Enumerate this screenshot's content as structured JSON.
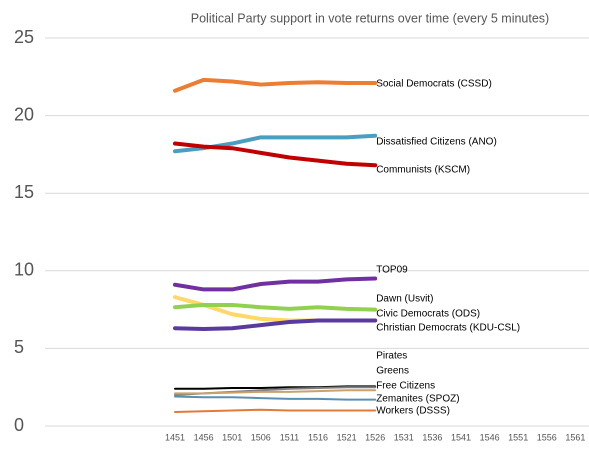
{
  "chart_data": {
    "type": "line",
    "title": "Political Party support in vote returns over time (every 5 minutes)",
    "categories": [
      "1451",
      "1456",
      "1501",
      "1506",
      "1511",
      "1516",
      "1521",
      "1526",
      "1531",
      "1536",
      "1541",
      "1546",
      "1551",
      "1556",
      "1561"
    ],
    "ylim": [
      0,
      25
    ],
    "yticks": [
      0,
      5,
      10,
      15,
      20,
      25
    ],
    "grid": true,
    "series": [
      {
        "name": "Social Democrats (CSSD)",
        "color": "#ed7d31",
        "values": [
          21.6,
          22.3,
          22.2,
          22.0,
          22.1,
          22.15,
          22.1,
          22.1,
          null,
          null,
          null,
          null,
          null,
          null,
          null
        ]
      },
      {
        "name": "Dissatisfied Citizens (ANO)",
        "color": "#4a9fc1",
        "values": [
          17.7,
          17.9,
          18.2,
          18.6,
          18.6,
          18.6,
          18.6,
          18.7,
          null,
          null,
          null,
          null,
          null,
          null,
          null
        ]
      },
      {
        "name": "Communists (KSCM)",
        "color": "#c00000",
        "values": [
          18.2,
          18.0,
          17.9,
          17.6,
          17.3,
          17.1,
          16.9,
          16.8,
          null,
          null,
          null,
          null,
          null,
          null,
          null
        ]
      },
      {
        "name": "TOP09",
        "color": "#7030a0",
        "values": [
          9.1,
          8.8,
          8.8,
          9.15,
          9.3,
          9.3,
          9.45,
          9.5,
          null,
          null,
          null,
          null,
          null,
          null,
          null
        ]
      },
      {
        "name": "Dawn (Usvit)",
        "color": "#ffd966",
        "values": [
          8.3,
          7.8,
          7.2,
          6.9,
          6.8,
          6.8,
          6.8,
          6.8,
          null,
          null,
          null,
          null,
          null,
          null,
          null
        ]
      },
      {
        "name": "Civic Democrats (ODS)",
        "color": "#92d050",
        "values": [
          7.65,
          7.8,
          7.8,
          7.65,
          7.55,
          7.65,
          7.55,
          7.5,
          null,
          null,
          null,
          null,
          null,
          null,
          null
        ]
      },
      {
        "name": "Christian Democrats (KDU-CSL)",
        "color": "#5b3a9e",
        "values": [
          6.3,
          6.25,
          6.3,
          6.5,
          6.7,
          6.8,
          6.8,
          6.8,
          null,
          null,
          null,
          null,
          null,
          null,
          null
        ]
      },
      {
        "name": "Pirates",
        "color": "#000000",
        "values": [
          2.4,
          2.4,
          2.45,
          2.45,
          2.5,
          2.5,
          2.55,
          2.55,
          null,
          null,
          null,
          null,
          null,
          null,
          null
        ]
      },
      {
        "name": "Greens",
        "color": "#7f7f7f",
        "values": [
          2.0,
          2.1,
          2.2,
          2.3,
          2.4,
          2.45,
          2.5,
          2.5,
          null,
          null,
          null,
          null,
          null,
          null,
          null
        ]
      },
      {
        "name": "Free Citizens",
        "color": "#c9a36a",
        "values": [
          2.1,
          2.1,
          2.15,
          2.2,
          2.2,
          2.25,
          2.3,
          2.3,
          null,
          null,
          null,
          null,
          null,
          null,
          null
        ]
      },
      {
        "name": "Zemanites (SPOZ)",
        "color": "#5a8fb0",
        "values": [
          1.9,
          1.85,
          1.85,
          1.8,
          1.75,
          1.75,
          1.7,
          1.7,
          null,
          null,
          null,
          null,
          null,
          null,
          null
        ]
      },
      {
        "name": "Workers (DSSS)",
        "color": "#e07b39",
        "values": [
          0.9,
          0.95,
          1.0,
          1.05,
          1.0,
          1.0,
          1.0,
          1.0,
          null,
          null,
          null,
          null,
          null,
          null,
          null
        ]
      }
    ]
  }
}
